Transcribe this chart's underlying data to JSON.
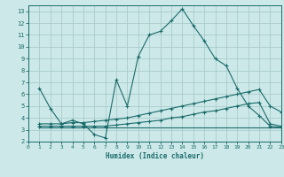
{
  "xlabel": "Humidex (Indice chaleur)",
  "background_color": "#cce8e8",
  "line_color": "#1a6b6b",
  "grid_color": "#aacccc",
  "xlim": [
    0,
    23
  ],
  "ylim": [
    2,
    13.5
  ],
  "xticks": [
    0,
    1,
    2,
    3,
    4,
    5,
    6,
    7,
    8,
    9,
    10,
    11,
    12,
    13,
    14,
    15,
    16,
    17,
    18,
    19,
    20,
    21,
    22,
    23
  ],
  "yticks": [
    2,
    3,
    4,
    5,
    6,
    7,
    8,
    9,
    10,
    11,
    12,
    13
  ],
  "line1_x": [
    1,
    2,
    3,
    4,
    5,
    6,
    7,
    8,
    9,
    10,
    11,
    12,
    13,
    14,
    15,
    16,
    17,
    18,
    19,
    20,
    21,
    22,
    23
  ],
  "line1_y": [
    6.5,
    4.8,
    3.5,
    3.8,
    3.5,
    2.6,
    2.3,
    7.2,
    5.0,
    9.2,
    11.0,
    11.3,
    12.2,
    13.2,
    11.8,
    10.5,
    9.0,
    8.4,
    6.5,
    5.0,
    4.2,
    3.3,
    3.2
  ],
  "line2_x": [
    1,
    2,
    3,
    4,
    5,
    6,
    7,
    8,
    9,
    10,
    11,
    12,
    13,
    14,
    15,
    16,
    17,
    18,
    19,
    20,
    21,
    22,
    23
  ],
  "line2_y": [
    3.5,
    3.5,
    3.5,
    3.6,
    3.6,
    3.7,
    3.8,
    3.9,
    4.0,
    4.2,
    4.4,
    4.6,
    4.8,
    5.0,
    5.2,
    5.4,
    5.6,
    5.8,
    6.0,
    6.2,
    6.4,
    5.0,
    4.5
  ],
  "line3_x": [
    1,
    2,
    3,
    4,
    5,
    6,
    7,
    8,
    9,
    10,
    11,
    12,
    13,
    14,
    15,
    16,
    17,
    18,
    19,
    20,
    21,
    22,
    23
  ],
  "line3_y": [
    3.3,
    3.3,
    3.3,
    3.3,
    3.3,
    3.3,
    3.3,
    3.4,
    3.5,
    3.6,
    3.7,
    3.8,
    4.0,
    4.1,
    4.3,
    4.5,
    4.6,
    4.8,
    5.0,
    5.2,
    5.3,
    3.5,
    3.3
  ],
  "line4_x": [
    1,
    22,
    23
  ],
  "line4_y": [
    3.2,
    3.2,
    3.2
  ]
}
